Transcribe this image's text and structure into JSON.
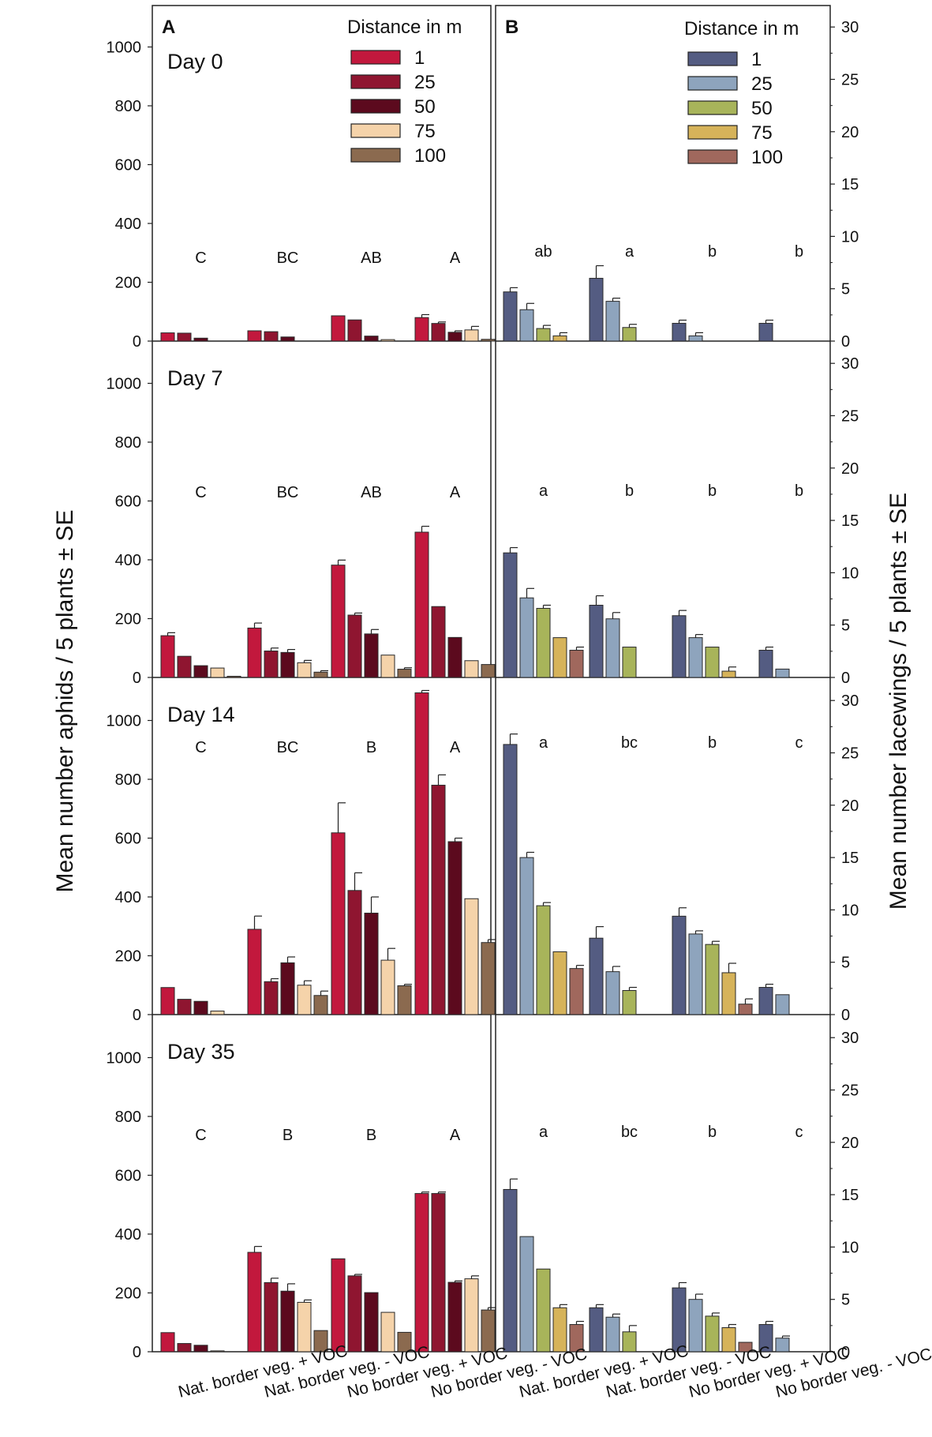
{
  "chart_data": {
    "type": "bar",
    "panel_labels": {
      "A": "A",
      "B": "B"
    },
    "ylabel_left": "Mean number aphids / 5 plants ± SE",
    "ylabel_right": "Mean number lacewings / 5 plants ± SE",
    "legend_title": "Distance in m",
    "series_names": [
      "1",
      "25",
      "50",
      "75",
      "100"
    ],
    "categories": [
      "Nat. border veg. + VOC",
      "Nat. border veg. - VOC",
      "No border veg. + VOC",
      "No border veg. - VOC"
    ],
    "aphids": {
      "ylim": [
        0,
        1100
      ],
      "yticks": [
        0,
        200,
        400,
        600,
        800,
        1000
      ],
      "colors": [
        "#c2183d",
        "#8f1530",
        "#5c0a1e",
        "#f5d3aa",
        "#8b6a4f"
      ],
      "days": [
        {
          "label": "Day 0",
          "letters": [
            "C",
            "BC",
            "AB",
            "A"
          ],
          "values": [
            [
              28,
              27,
              10,
              0,
              0
            ],
            [
              35,
              32,
              14,
              0,
              0
            ],
            [
              86,
              72,
              17,
              5,
              0
            ],
            [
              80,
              60,
              30,
              38,
              6
            ]
          ],
          "errors": [
            [
              0,
              0,
              0,
              0,
              0
            ],
            [
              0,
              0,
              0,
              0,
              0
            ],
            [
              0,
              0,
              0,
              0,
              0
            ],
            [
              10,
              5,
              5,
              12,
              0
            ]
          ]
        },
        {
          "label": "Day 7",
          "letters": [
            "C",
            "BC",
            "AB",
            "A"
          ],
          "values": [
            [
              142,
              72,
              40,
              32,
              4
            ],
            [
              168,
              90,
              85,
              50,
              18
            ],
            [
              382,
              212,
              148,
              76,
              28
            ],
            [
              494,
              241,
              136,
              57,
              44
            ]
          ],
          "errors": [
            [
              10,
              0,
              0,
              0,
              0
            ],
            [
              17,
              10,
              10,
              8,
              5
            ],
            [
              17,
              7,
              15,
              0,
              5
            ],
            [
              20,
              0,
              0,
              0,
              0
            ]
          ]
        },
        {
          "label": "Day 14",
          "letters": [
            "C",
            "BC",
            "B",
            "A"
          ],
          "values": [
            [
              92,
              52,
              45,
              12,
              0
            ],
            [
              290,
              112,
              176,
              100,
              65
            ],
            [
              618,
              422,
              345,
              185,
              98
            ],
            [
              1094,
              780,
              588,
              394,
              245
            ]
          ],
          "errors": [
            [
              0,
              0,
              0,
              0,
              0
            ],
            [
              45,
              10,
              20,
              15,
              15
            ],
            [
              102,
              60,
              55,
              40,
              5
            ],
            [
              8,
              35,
              12,
              0,
              10
            ]
          ]
        },
        {
          "label": "Day 35",
          "letters": [
            "C",
            "B",
            "B",
            "A"
          ],
          "values": [
            [
              65,
              28,
              22,
              3,
              0
            ],
            [
              338,
              235,
              206,
              168,
              72
            ],
            [
              316,
              258,
              201,
              134,
              66
            ],
            [
              538,
              538,
              236,
              248,
              142
            ]
          ],
          "errors": [
            [
              0,
              0,
              0,
              0,
              0
            ],
            [
              20,
              15,
              25,
              8,
              0
            ],
            [
              0,
              5,
              0,
              0,
              0
            ],
            [
              5,
              5,
              5,
              10,
              8
            ]
          ]
        }
      ]
    },
    "lacewings": {
      "ylim": [
        0,
        32
      ],
      "yticks": [
        0,
        5,
        10,
        15,
        20,
        25,
        30
      ],
      "colors": [
        "#545c82",
        "#8ea4bd",
        "#a8b45a",
        "#d6b35a",
        "#a0685d"
      ],
      "days": [
        {
          "label": "Day 0",
          "letters": [
            "ab",
            "a",
            "b",
            "b"
          ],
          "values": [
            [
              4.7,
              3.0,
              1.2,
              0.5,
              0
            ],
            [
              6.0,
              3.8,
              1.3,
              0,
              0
            ],
            [
              1.7,
              0.5,
              0,
              0,
              0
            ],
            [
              1.7,
              0,
              0,
              0,
              0
            ]
          ],
          "errors": [
            [
              0.4,
              0.6,
              0.3,
              0.3,
              0
            ],
            [
              1.2,
              0.3,
              0.3,
              0,
              0
            ],
            [
              0.3,
              0.3,
              0,
              0,
              0
            ],
            [
              0.3,
              0,
              0,
              0,
              0
            ]
          ]
        },
        {
          "label": "Day 7",
          "letters": [
            "a",
            "b",
            "b",
            "b"
          ],
          "values": [
            [
              11.9,
              7.6,
              6.6,
              3.8,
              2.6
            ],
            [
              6.9,
              5.6,
              2.9,
              0,
              0
            ],
            [
              5.9,
              3.8,
              2.9,
              0.6,
              0
            ],
            [
              2.6,
              0.8,
              0,
              0,
              0
            ]
          ],
          "errors": [
            [
              0.5,
              0.9,
              0.3,
              0,
              0.3
            ],
            [
              0.9,
              0.6,
              0,
              0,
              0
            ],
            [
              0.5,
              0.3,
              0,
              0.4,
              0
            ],
            [
              0.3,
              0,
              0,
              0,
              0
            ]
          ]
        },
        {
          "label": "Day 14",
          "letters": [
            "a",
            "bc",
            "b",
            "c"
          ],
          "values": [
            [
              25.8,
              15.0,
              10.4,
              6.0,
              4.4
            ],
            [
              7.3,
              4.1,
              2.3,
              0,
              0
            ],
            [
              9.4,
              7.7,
              6.7,
              4.0,
              1.0
            ],
            [
              2.6,
              1.9,
              0,
              0,
              0
            ]
          ],
          "errors": [
            [
              1.0,
              0.5,
              0.3,
              0,
              0.3
            ],
            [
              1.1,
              0.5,
              0.3,
              0,
              0
            ],
            [
              0.8,
              0.3,
              0.3,
              0.9,
              0.5
            ],
            [
              0.3,
              0,
              0,
              0,
              0
            ]
          ]
        },
        {
          "label": "Day 35",
          "letters": [
            "a",
            "bc",
            "b",
            "c"
          ],
          "values": [
            [
              15.5,
              11.0,
              7.9,
              4.2,
              2.6
            ],
            [
              4.2,
              3.3,
              1.9,
              0,
              0
            ],
            [
              6.1,
              5.0,
              3.4,
              2.3,
              0.9
            ],
            [
              2.6,
              1.3,
              0,
              0,
              0
            ]
          ],
          "errors": [
            [
              1.0,
              0,
              0,
              0.3,
              0.3
            ],
            [
              0.3,
              0.3,
              0.6,
              0,
              0
            ],
            [
              0.5,
              0.5,
              0.3,
              0.3,
              0
            ],
            [
              0.3,
              0.2,
              0,
              0,
              0
            ]
          ]
        }
      ]
    }
  }
}
